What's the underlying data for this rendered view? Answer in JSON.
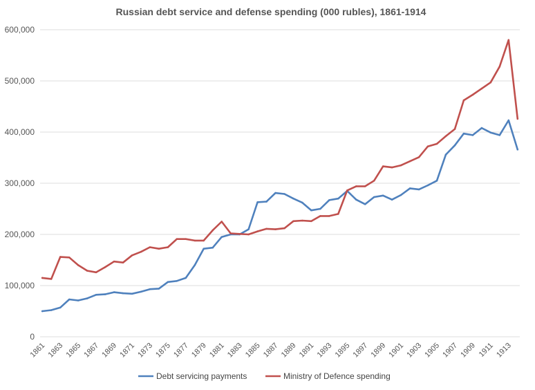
{
  "chart_data": {
    "type": "line",
    "title": "Russian debt service and defense spending (000 rubles), 1861-1914",
    "xlabel": "",
    "ylabel": "",
    "ylim": [
      0,
      600000
    ],
    "yticks": [
      0,
      100000,
      200000,
      300000,
      400000,
      500000,
      600000
    ],
    "ytick_labels": [
      "0",
      "100,000",
      "200,000",
      "300,000",
      "400,000",
      "500,000",
      "600,000"
    ],
    "x": [
      1861,
      1862,
      1863,
      1864,
      1865,
      1866,
      1867,
      1868,
      1869,
      1870,
      1871,
      1872,
      1873,
      1874,
      1875,
      1876,
      1877,
      1878,
      1879,
      1880,
      1881,
      1882,
      1883,
      1884,
      1885,
      1886,
      1887,
      1888,
      1889,
      1890,
      1891,
      1892,
      1893,
      1894,
      1895,
      1896,
      1897,
      1898,
      1899,
      1900,
      1901,
      1902,
      1903,
      1904,
      1905,
      1906,
      1907,
      1908,
      1909,
      1910,
      1911,
      1912,
      1913,
      1914
    ],
    "xtick_labels": [
      "1861",
      "1863",
      "1865",
      "1867",
      "1869",
      "1871",
      "1873",
      "1875",
      "1877",
      "1879",
      "1881",
      "1883",
      "1885",
      "1887",
      "1889",
      "1891",
      "1893",
      "1895",
      "1897",
      "1899",
      "1901",
      "1903",
      "1905",
      "1907",
      "1909",
      "1911",
      "1913"
    ],
    "series": [
      {
        "name": "Debt servicing payments",
        "color": "#4f81bd",
        "values": [
          50000,
          52000,
          57000,
          73000,
          71000,
          75000,
          82000,
          83000,
          87000,
          85000,
          84000,
          88000,
          93000,
          94000,
          107000,
          109000,
          115000,
          140000,
          172000,
          174000,
          195000,
          200000,
          200000,
          210000,
          263000,
          264000,
          281000,
          279000,
          270000,
          262000,
          247000,
          250000,
          267000,
          270000,
          285000,
          268000,
          259000,
          273000,
          276000,
          268000,
          277000,
          290000,
          288000,
          296000,
          305000,
          356000,
          374000,
          397000,
          394000,
          408000,
          399000,
          394000,
          423000,
          366000
        ]
      },
      {
        "name": "Ministry of Defence spending",
        "color": "#c0504d",
        "values": [
          115000,
          113000,
          156000,
          155000,
          140000,
          129000,
          126000,
          136000,
          147000,
          145000,
          159000,
          166000,
          175000,
          172000,
          175000,
          191000,
          191000,
          188000,
          188000,
          208000,
          225000,
          202000,
          201000,
          200000,
          206000,
          211000,
          210000,
          212000,
          226000,
          227000,
          226000,
          236000,
          236000,
          240000,
          286000,
          294000,
          294000,
          305000,
          333000,
          331000,
          335000,
          343000,
          351000,
          372000,
          377000,
          392000,
          406000,
          462000,
          473000,
          485000,
          497000,
          528000,
          580000,
          426000
        ]
      }
    ],
    "legend": "bottom",
    "grid": true
  }
}
